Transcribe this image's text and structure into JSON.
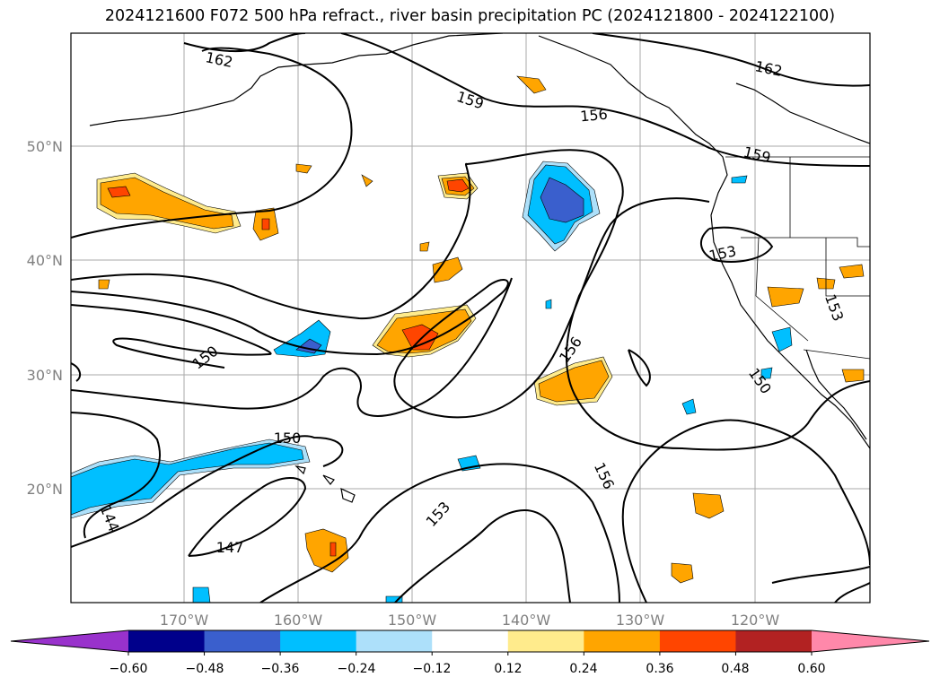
{
  "title": "2024121600 F072 500 hPa refract., river basin precipitation PC (2024121800 - 2024122100)",
  "lat_labels": [
    "50°N",
    "40°N",
    "30°N",
    "20°N"
  ],
  "lon_labels": [
    "170°W",
    "160°W",
    "150°W",
    "140°W",
    "130°W",
    "120°W"
  ],
  "contour_labels": [
    "162",
    "159",
    "156",
    "162",
    "159",
    "153",
    "153",
    "150",
    "156",
    "150",
    "150",
    "156",
    "153",
    "147",
    "144"
  ],
  "colorbar": {
    "ticks": [
      "−0.60",
      "−0.48",
      "−0.36",
      "−0.24",
      "−0.12",
      "0.12",
      "0.24",
      "0.36",
      "0.48",
      "0.60"
    ],
    "colors": [
      "#9932CC",
      "#00008B",
      "#3A5FCD",
      "#00BFFF",
      "#ADE0FA",
      "#FFFFFF",
      "#FFEB8C",
      "#FFA500",
      "#FF4500",
      "#B22222",
      "#FF88AA"
    ]
  },
  "colors": {
    "grid": "#AAAAAA",
    "axis_label": "#808080"
  }
}
